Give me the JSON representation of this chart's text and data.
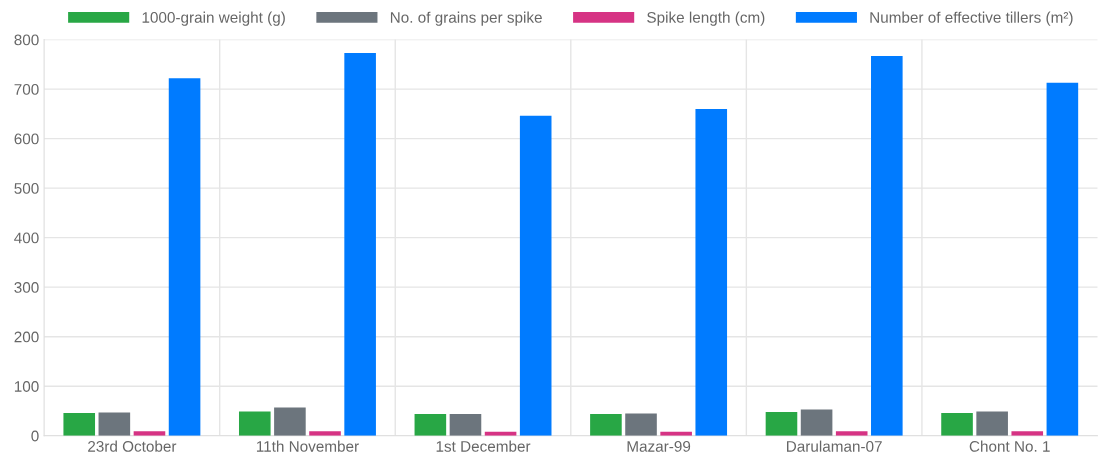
{
  "chart_data": {
    "type": "bar",
    "categories": [
      "23rd October",
      "11th November",
      "1st December",
      "Mazar-99",
      "Darulaman-07",
      "Chont No. 1"
    ],
    "series": [
      {
        "name": "1000-grain weight (g)",
        "color": "#28a745",
        "values": [
          46,
          49,
          44,
          44,
          48,
          46
        ]
      },
      {
        "name": "No. of grains per spike",
        "color": "#6c757d",
        "values": [
          47,
          57,
          44,
          45,
          53,
          49
        ]
      },
      {
        "name": "Spike length (cm)",
        "color": "#d63384",
        "values": [
          9,
          9,
          8,
          8,
          9,
          9
        ]
      },
      {
        "name": "Number of effective tillers (m²)",
        "color": "#007bff",
        "values": [
          722,
          773,
          646,
          660,
          767,
          713
        ]
      }
    ],
    "ylim": [
      0,
      800
    ],
    "yticks": [
      0,
      100,
      200,
      300,
      400,
      500,
      600,
      700,
      800
    ],
    "grid": true,
    "legend": "top"
  }
}
